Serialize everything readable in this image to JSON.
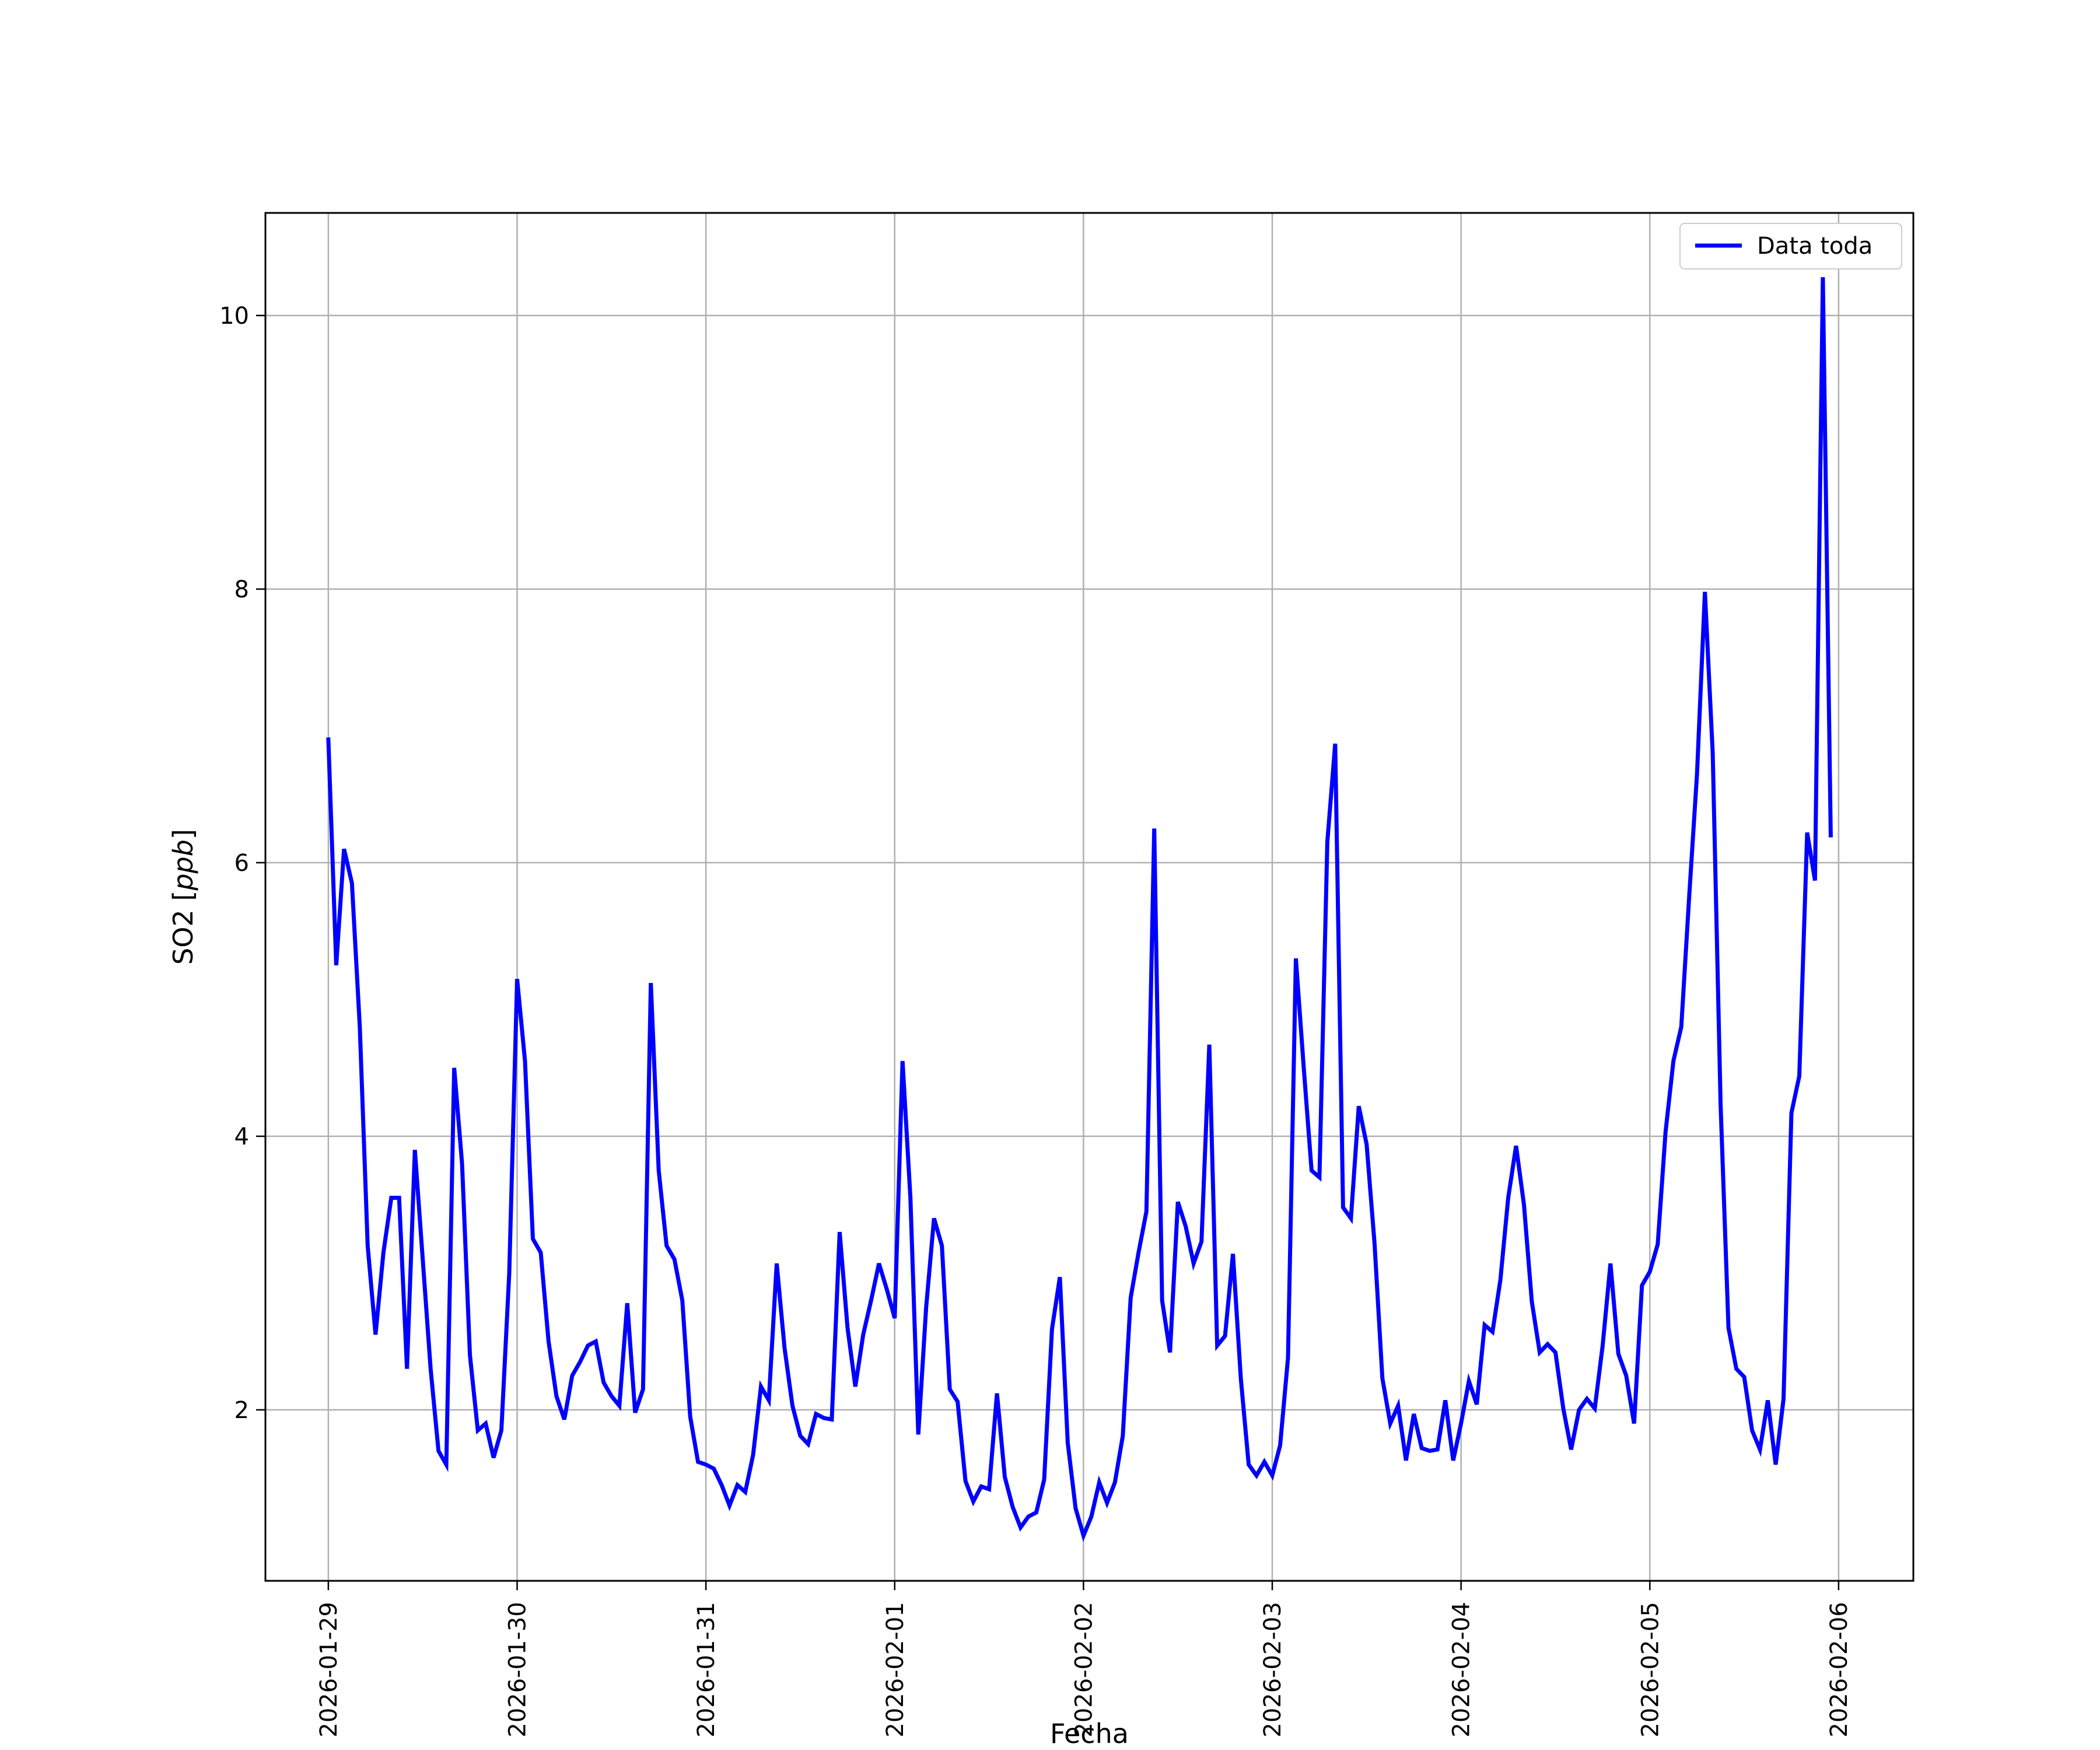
{
  "chart_data": {
    "type": "line",
    "xlabel": "Fecha",
    "ylabel_main": "SO2 [",
    "ylabel_unit": "ppb",
    "ylabel_close": "]",
    "x_ticks": [
      "2026-01-29",
      "2026-01-30",
      "2026-01-31",
      "2026-02-01",
      "2026-02-02",
      "2026-02-03",
      "2026-02-04",
      "2026-02-05",
      "2026-02-06"
    ],
    "y_ticks": [
      "2",
      "4",
      "6",
      "8",
      "10"
    ],
    "xlim": [
      "2026-01-28T16:00",
      "2026-02-06T09:30"
    ],
    "ylim": [
      0.75,
      10.75
    ],
    "grid": true,
    "legend_position": "top-right",
    "colors": {
      "line": "#0000ff",
      "grid": "#b0b0b0",
      "axes": "#000000"
    },
    "series": [
      {
        "name": "Data toda",
        "x_start": "2026-01-29T00:00",
        "x_step_hours": 1,
        "values": [
          6.9,
          5.25,
          6.1,
          5.85,
          4.8,
          3.2,
          2.55,
          3.15,
          3.55,
          3.55,
          2.3,
          3.9,
          3.1,
          2.3,
          1.7,
          1.6,
          4.5,
          3.8,
          2.4,
          1.85,
          1.9,
          1.65,
          1.85,
          3.0,
          5.15,
          4.55,
          3.25,
          3.15,
          2.5,
          2.1,
          1.93,
          2.25,
          2.35,
          2.47,
          2.5,
          2.2,
          2.1,
          2.03,
          2.78,
          1.98,
          2.15,
          5.12,
          3.75,
          3.2,
          3.1,
          2.8,
          1.95,
          1.62,
          1.6,
          1.57,
          1.45,
          1.3,
          1.45,
          1.4,
          1.67,
          2.17,
          2.07,
          3.07,
          2.45,
          2.03,
          1.81,
          1.75,
          1.97,
          1.94,
          1.93,
          3.3,
          2.6,
          2.17,
          2.55,
          2.8,
          3.07,
          2.88,
          2.67,
          4.55,
          3.55,
          1.82,
          2.75,
          3.4,
          3.2,
          2.15,
          2.06,
          1.48,
          1.33,
          1.44,
          1.42,
          2.12,
          1.51,
          1.29,
          1.14,
          1.22,
          1.25,
          1.49,
          2.59,
          2.97,
          1.76,
          1.28,
          1.08,
          1.22,
          1.47,
          1.32,
          1.47,
          1.81,
          2.82,
          3.15,
          3.45,
          6.25,
          2.8,
          2.42,
          3.52,
          3.34,
          3.07,
          3.23,
          4.67,
          2.47,
          2.54,
          3.14,
          2.23,
          1.6,
          1.52,
          1.62,
          1.52,
          1.74,
          2.38,
          5.3,
          4.5,
          3.75,
          3.7,
          6.15,
          6.87,
          3.48,
          3.4,
          4.22,
          3.94,
          3.22,
          2.23,
          1.9,
          2.03,
          1.63,
          1.97,
          1.72,
          1.7,
          1.71,
          2.07,
          1.63,
          1.9,
          2.21,
          2.04,
          2.62,
          2.57,
          2.95,
          3.55,
          3.93,
          3.5,
          2.79,
          2.42,
          2.48,
          2.42,
          2.01,
          1.71,
          2.0,
          2.08,
          2.01,
          2.47,
          3.07,
          2.41,
          2.25,
          1.9,
          2.91,
          3.01,
          3.21,
          4.03,
          4.55,
          4.8,
          5.75,
          6.65,
          7.98,
          6.8,
          4.23,
          2.6,
          2.3,
          2.24,
          1.85,
          1.71,
          2.07,
          1.6,
          2.08,
          4.17,
          4.44,
          6.22,
          5.87,
          10.28,
          6.2
        ]
      }
    ]
  }
}
